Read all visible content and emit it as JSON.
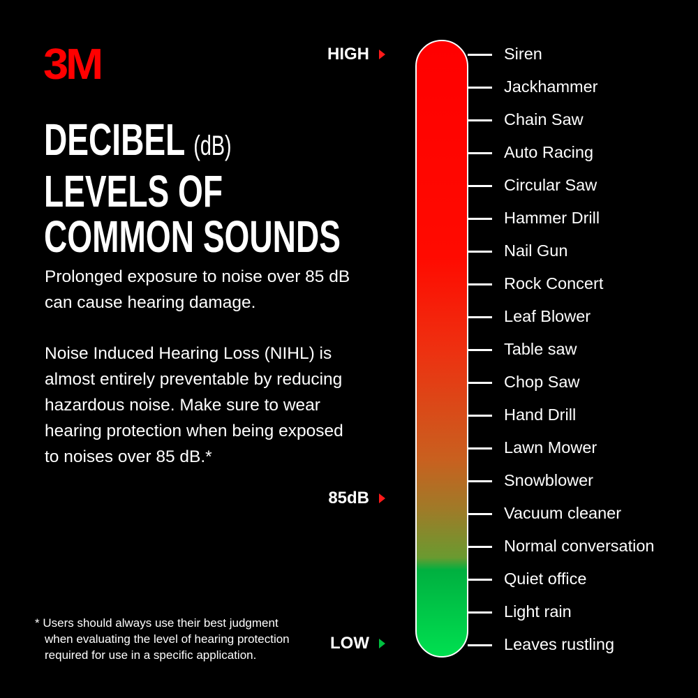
{
  "logo": "3M",
  "title": {
    "line1": "DECIBEL",
    "unit": "(dB)",
    "line2": "LEVELS OF",
    "line3": "COMMON SOUNDS"
  },
  "paragraphs": [
    "Prolonged exposure to noise over 85 dB can cause hearing damage.",
    "Noise Induced Hearing Loss (NIHL) is almost entirely preventable by reducing hazardous noise.  Make sure to wear hearing protection when being exposed to noises over 85 dB.*"
  ],
  "footnote": {
    "line1": "* Users should always use their best judgment",
    "line2": "when evaluating the level of hearing protection",
    "line3": "required for use in a specific application."
  },
  "markers": {
    "high": "HIGH",
    "threshold": "85dB",
    "low": "LOW"
  },
  "colors": {
    "high": "#ff0000",
    "low": "#00e050",
    "accent": "#ff0000"
  },
  "sounds": [
    "Siren",
    "Jackhammer",
    "Chain Saw",
    "Auto Racing",
    "Circular Saw",
    "Hammer Drill",
    "Nail Gun",
    "Rock Concert",
    "Leaf Blower",
    "Table saw",
    "Chop Saw",
    "Hand Drill",
    "Lawn Mower",
    "Snowblower",
    "Vacuum cleaner",
    "Normal conversation",
    "Quiet office",
    "Light rain",
    "Leaves rustling"
  ]
}
